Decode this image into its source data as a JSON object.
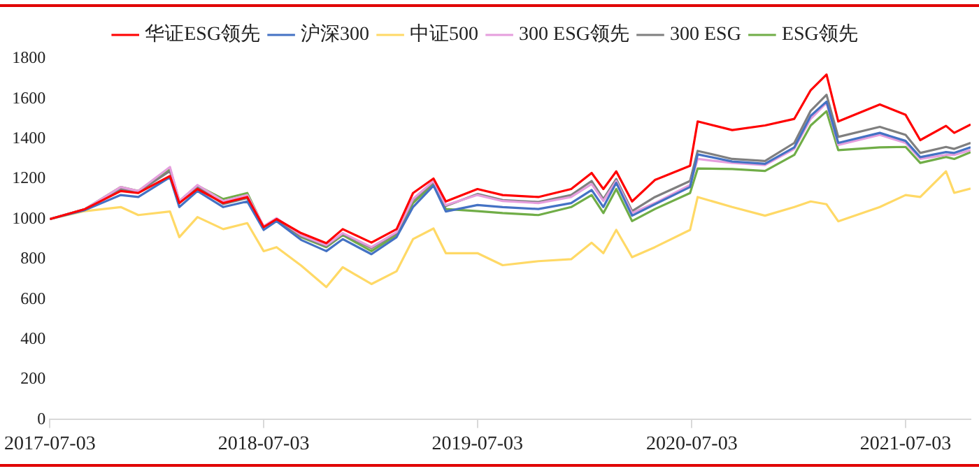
{
  "chart_data": {
    "type": "line",
    "legend": "top",
    "grid": false,
    "marker": "none",
    "line_style": "solid",
    "x": [
      "2017-07-03",
      "2017-09-01",
      "2017-11-01",
      "2017-12-01",
      "2018-01-24",
      "2018-02-09",
      "2018-03-12",
      "2018-04-25",
      "2018-06-05",
      "2018-07-03",
      "2018-07-25",
      "2018-09-05",
      "2018-10-18",
      "2018-11-15",
      "2019-01-03",
      "2019-02-15",
      "2019-03-15",
      "2019-04-19",
      "2019-05-10",
      "2019-07-03",
      "2019-08-15",
      "2019-10-15",
      "2019-12-10",
      "2020-01-14",
      "2020-02-03",
      "2020-02-25",
      "2020-03-23",
      "2020-05-01",
      "2020-06-30",
      "2020-07-13",
      "2020-09-10",
      "2020-11-05",
      "2020-12-25",
      "2021-01-22",
      "2021-02-18",
      "2021-03-10",
      "2021-05-20",
      "2021-07-03",
      "2021-07-28",
      "2021-09-10",
      "2021-09-24",
      "2021-10-22"
    ],
    "xlim": [
      "2017-07-03",
      "2021-10-22"
    ],
    "xticks": [
      "2017-07-03",
      "2018-07-03",
      "2019-07-03",
      "2020-07-03",
      "2021-07-03"
    ],
    "ylim": [
      0,
      1800
    ],
    "yticks": [
      0,
      200,
      400,
      600,
      800,
      1000,
      1200,
      1400,
      1600,
      1800
    ],
    "series": [
      {
        "name": "华证ESG领先",
        "color": "#ff0000",
        "values": [
          1000,
          1050,
          1140,
          1130,
          1215,
          1080,
          1150,
          1080,
          1110,
          960,
          1000,
          930,
          880,
          950,
          883,
          950,
          1130,
          1202,
          1088,
          1150,
          1120,
          1110,
          1150,
          1230,
          1150,
          1238,
          1088,
          1195,
          1266,
          1487,
          1444,
          1467,
          1500,
          1643,
          1721,
          1487,
          1572,
          1520,
          1394,
          1465,
          1430,
          1472
        ]
      },
      {
        "name": "沪深300",
        "color": "#4472c4",
        "values": [
          1000,
          1045,
          1120,
          1110,
          1209,
          1060,
          1140,
          1060,
          1088,
          946,
          990,
          896,
          840,
          900,
          825,
          910,
          1060,
          1167,
          1038,
          1070,
          1060,
          1050,
          1080,
          1145,
          1060,
          1181,
          1017,
          1074,
          1160,
          1323,
          1287,
          1276,
          1358,
          1515,
          1586,
          1380,
          1430,
          1390,
          1309,
          1334,
          1330,
          1358
        ]
      },
      {
        "name": "中证500",
        "color": "#ffd966",
        "values": [
          1000,
          1040,
          1060,
          1020,
          1038,
          910,
          1010,
          950,
          980,
          840,
          860,
          768,
          661,
          760,
          676,
          740,
          900,
          953,
          830,
          830,
          770,
          790,
          800,
          882,
          830,
          946,
          810,
          860,
          946,
          1110,
          1060,
          1017,
          1060,
          1088,
          1074,
          989,
          1060,
          1120,
          1110,
          1238,
          1131,
          1152
        ]
      },
      {
        "name": "300 ESG领先",
        "color": "#e59edd",
        "values": [
          1000,
          1050,
          1160,
          1140,
          1260,
          1090,
          1170,
          1090,
          1120,
          965,
          1005,
          920,
          870,
          930,
          860,
          935,
          1100,
          1190,
          1070,
          1120,
          1090,
          1080,
          1110,
          1175,
          1090,
          1190,
          1030,
          1080,
          1170,
          1300,
          1280,
          1270,
          1350,
          1500,
          1580,
          1370,
          1420,
          1380,
          1300,
          1320,
          1320,
          1344
        ]
      },
      {
        "name": "300 ESG",
        "color": "#7f7f7f",
        "values": [
          1000,
          1050,
          1150,
          1135,
          1240,
          1080,
          1160,
          1075,
          1105,
          960,
          1000,
          915,
          865,
          925,
          855,
          930,
          1095,
          1185,
          1065,
          1125,
          1095,
          1085,
          1120,
          1190,
          1100,
          1200,
          1040,
          1110,
          1190,
          1340,
          1300,
          1290,
          1380,
          1540,
          1620,
          1410,
          1460,
          1420,
          1330,
          1360,
          1350,
          1380
        ]
      },
      {
        "name": "ESG领先",
        "color": "#70ad47",
        "values": [
          1000,
          1050,
          1160,
          1140,
          1252,
          1090,
          1167,
          1100,
          1130,
          960,
          1000,
          910,
          860,
          920,
          840,
          920,
          1080,
          1175,
          1050,
          1040,
          1030,
          1020,
          1060,
          1120,
          1030,
          1150,
          990,
          1050,
          1130,
          1252,
          1250,
          1240,
          1320,
          1467,
          1538,
          1344,
          1358,
          1360,
          1280,
          1310,
          1300,
          1334
        ]
      }
    ]
  }
}
